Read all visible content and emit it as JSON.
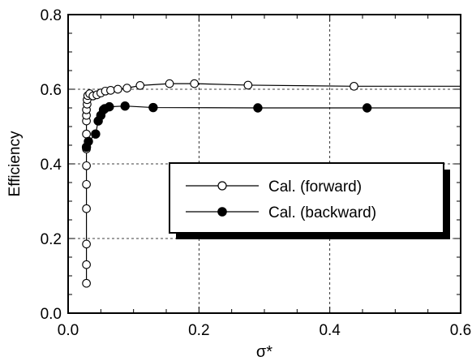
{
  "chart_data": {
    "type": "line",
    "title": "",
    "xlabel": "σ*",
    "ylabel": "Efficiency",
    "xlim": [
      0.0,
      0.6
    ],
    "ylim": [
      0.0,
      0.8
    ],
    "xticks": [
      "0.0",
      "0.2",
      "0.4",
      "0.6"
    ],
    "yticks": [
      "0.0",
      "0.2",
      "0.4",
      "0.6",
      "0.8"
    ],
    "grid": true,
    "legend_position": "center-right",
    "series": [
      {
        "name": "Cal. (forward)",
        "marker": "open-circle",
        "points": [
          [
            0.028,
            0.08
          ],
          [
            0.028,
            0.13
          ],
          [
            0.028,
            0.185
          ],
          [
            0.028,
            0.28
          ],
          [
            0.028,
            0.345
          ],
          [
            0.028,
            0.395
          ],
          [
            0.028,
            0.44
          ],
          [
            0.028,
            0.48
          ],
          [
            0.028,
            0.515
          ],
          [
            0.028,
            0.53
          ],
          [
            0.028,
            0.545
          ],
          [
            0.029,
            0.56
          ],
          [
            0.029,
            0.572
          ],
          [
            0.03,
            0.583
          ],
          [
            0.033,
            0.588
          ],
          [
            0.038,
            0.582
          ],
          [
            0.044,
            0.585
          ],
          [
            0.05,
            0.59
          ],
          [
            0.057,
            0.595
          ],
          [
            0.065,
            0.597
          ],
          [
            0.076,
            0.6
          ],
          [
            0.09,
            0.603
          ],
          [
            0.11,
            0.61
          ],
          [
            0.155,
            0.615
          ],
          [
            0.193,
            0.615
          ],
          [
            0.275,
            0.611
          ],
          [
            0.437,
            0.608
          ],
          [
            0.6,
            0.608
          ]
        ]
      },
      {
        "name": "Cal. (backward)",
        "marker": "filled-circle",
        "points": [
          [
            0.028,
            0.445
          ],
          [
            0.031,
            0.46
          ],
          [
            0.042,
            0.48
          ],
          [
            0.046,
            0.515
          ],
          [
            0.05,
            0.53
          ],
          [
            0.054,
            0.545
          ],
          [
            0.056,
            0.548
          ],
          [
            0.063,
            0.553
          ],
          [
            0.087,
            0.555
          ],
          [
            0.13,
            0.551
          ],
          [
            0.29,
            0.55
          ],
          [
            0.457,
            0.55
          ],
          [
            0.6,
            0.55
          ]
        ]
      }
    ]
  }
}
